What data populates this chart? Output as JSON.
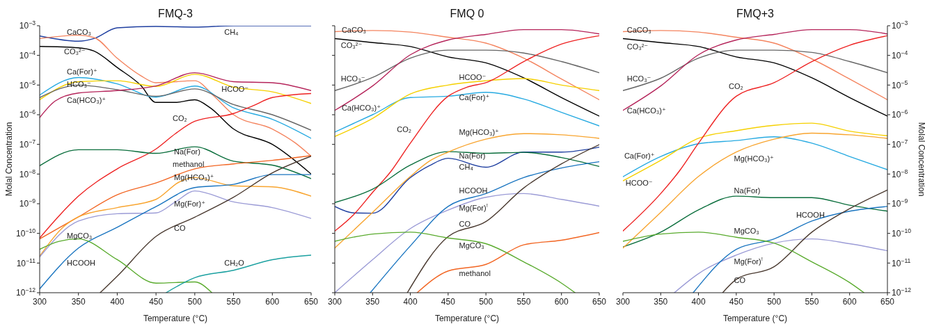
{
  "chart_data": [
    {
      "type": "line",
      "title": "FMQ-3",
      "xlabel": "Temperature (°C)",
      "ylabel": "Molal Concentration",
      "xlim": [
        300,
        650
      ],
      "xticks": [
        300,
        350,
        400,
        450,
        500,
        550,
        600,
        650
      ],
      "ylim": [
        1e-12,
        0.001
      ],
      "log": true,
      "yticks": [
        {
          "value": 1e-12,
          "label": "10$^{−12}$"
        },
        {
          "value": 1e-11,
          "label": "10$^{−11}$"
        },
        {
          "value": 1e-10,
          "label": "10$^{−10}$"
        },
        {
          "value": 1e-09,
          "label": "10$^{−9}$"
        },
        {
          "value": 1e-08,
          "label": "10$^{−8}$"
        },
        {
          "value": 1e-07,
          "label": "10$^{−7}$"
        },
        {
          "value": 1e-06,
          "label": "10$^{−6}$"
        },
        {
          "value": 1e-05,
          "label": "10$^{−5}$"
        },
        {
          "value": 0.0001,
          "label": "10$^{−4}$"
        },
        {
          "value": 0.001,
          "label": "10$^{−3}$"
        }
      ],
      "series": [
        {
          "name": "CH₄",
          "color": "#1f3fa0",
          "x": [
            300,
            350,
            370,
            400,
            450,
            500,
            550,
            600,
            650
          ],
          "values": [
            0.00045,
            0.0003,
            0.00037,
            0.00085,
            0.00095,
            0.0009,
            0.001,
            0.001,
            0.001
          ]
        },
        {
          "name": "CaCO₃",
          "color": "#f4845f",
          "x": [
            300,
            350,
            370,
            400,
            430,
            450,
            500,
            525,
            550,
            600,
            630,
            650
          ],
          "values": [
            0.00037,
            0.00048,
            0.0004,
            8e-05,
            2.1e-05,
            1.2e-05,
            1.4e-05,
            4.2e-06,
            1e-06,
            3.3e-07,
            1.1e-07,
            4e-08
          ]
        },
        {
          "name": "CO₃²⁻",
          "color": "#000000",
          "x": [
            300,
            350,
            370,
            400,
            430,
            450,
            475,
            500,
            520,
            550,
            600,
            650
          ],
          "values": [
            0.0002,
            0.00018,
            0.00014,
            3.9e-05,
            1e-05,
            2.6e-06,
            2.6e-06,
            3.2e-06,
            1.7e-06,
            3.3e-07,
            1e-07,
            1e-08
          ]
        },
        {
          "name": "Ca(For)⁺",
          "color": "#27aae1",
          "x": [
            300,
            350,
            400,
            450,
            500,
            550,
            600,
            650
          ],
          "values": [
            4.6e-06,
            1.8e-05,
            1.1e-05,
            3.9e-06,
            9.3e-06,
            1.7e-06,
            7e-07,
            1.6e-07
          ]
        },
        {
          "name": "HCOO⁻",
          "color": "#f5d000",
          "x": [
            300,
            350,
            400,
            450,
            500,
            550,
            600,
            650
          ],
          "values": [
            3.2e-06,
            1.3e-05,
            1.4e-05,
            9e-06,
            2.3e-05,
            8.5e-06,
            5.9e-06,
            2.4e-06
          ]
        },
        {
          "name": "HCO₃⁻",
          "color": "#666666",
          "x": [
            300,
            350,
            400,
            450,
            500,
            550,
            600,
            650
          ],
          "values": [
            3.8e-06,
            1e-05,
            7e-06,
            4.2e-06,
            7.4e-06,
            2.2e-06,
            1e-06,
            3e-07
          ]
        },
        {
          "name": "Ca(HCO₃)⁺",
          "color": "#b5245a",
          "x": [
            300,
            320,
            350,
            400,
            450,
            500,
            550,
            600,
            650
          ],
          "values": [
            8e-07,
            2.9e-06,
            5.4e-06,
            6.5e-06,
            9.3e-06,
            2.6e-05,
            1.3e-05,
            1.2e-05,
            6.5e-06
          ]
        },
        {
          "name": "CO₂",
          "color": "#ee2222",
          "x": [
            300,
            325,
            350,
            400,
            450,
            475,
            500,
            550,
            575,
            600,
            650
          ],
          "values": [
            7e-11,
            3.9e-10,
            1.8e-09,
            1.5e-08,
            7e-08,
            2.3e-07,
            6e-07,
            1.1e-06,
            2e-06,
            3.8e-06,
            5.2e-06
          ]
        },
        {
          "name": "Na(For)",
          "color": "#0a6e3c",
          "x": [
            300,
            350,
            400,
            450,
            500,
            550,
            600,
            650
          ],
          "values": [
            1.9e-08,
            6.6e-08,
            6.6e-08,
            5e-08,
            8.3e-08,
            2.7e-08,
            2e-08,
            7e-09
          ]
        },
        {
          "name": "methanol",
          "color": "#f26522",
          "x": [
            300,
            350,
            400,
            450,
            500,
            550,
            600,
            650
          ],
          "values": [
            6.5e-11,
            3.6e-10,
            2e-09,
            5e-09,
            1.5e-08,
            2.2e-08,
            2.9e-08,
            4.2e-08
          ]
        },
        {
          "name": "Mg(HCO₃)⁺",
          "color": "#f8a530",
          "x": [
            300,
            330,
            350,
            400,
            450,
            480,
            500,
            550,
            600,
            650
          ],
          "values": [
            1.7e-11,
            1.6e-10,
            3.6e-10,
            7.4e-10,
            1.4e-09,
            5.4e-09,
            7.6e-09,
            4e-09,
            3.7e-09,
            1.8e-09
          ]
        },
        {
          "name": "Mg(For)⁺",
          "color": "#9b9bd6",
          "x": [
            300,
            350,
            400,
            450,
            475,
            500,
            550,
            600,
            650
          ],
          "values": [
            1.6e-11,
            2.6e-10,
            4.6e-10,
            4.9e-10,
            1.15e-09,
            2.7e-09,
            1.15e-09,
            7.4e-10,
            3.2e-10
          ]
        },
        {
          "name": "HCOOH",
          "color": "#1a75c0",
          "x": [
            300,
            350,
            400,
            450,
            500,
            550,
            600,
            650
          ],
          "values": [
            1.35e-12,
            3.2e-11,
            1.6e-10,
            8e-10,
            3.5e-09,
            4.5e-09,
            9.6e-09,
            9.6e-09
          ]
        },
        {
          "name": "CO",
          "color": "#4a3a30",
          "x": [
            378,
            400,
            450,
            500,
            550,
            600,
            650
          ],
          "values": [
            1e-12,
            3.6e-12,
            7.9e-11,
            3.5e-10,
            1.65e-09,
            1.1e-08,
            4e-08
          ]
        },
        {
          "name": "MgCO₃",
          "color": "#5aab2e",
          "x": [
            300,
            325,
            350,
            400,
            450,
            500,
            522
          ],
          "values": [
            2.9e-11,
            5.4e-11,
            6.5e-11,
            1.3e-11,
            2.1e-12,
            2.3e-12,
            1e-12
          ]
        },
        {
          "name": "CH₂O",
          "color": "#1aa0a0",
          "x": [
            463,
            500,
            550,
            600,
            650
          ],
          "values": [
            1e-12,
            3.2e-12,
            5.7e-12,
            1.3e-11,
            1.85e-11
          ]
        }
      ]
    },
    {
      "type": "line",
      "title": "FMQ 0",
      "xlabel": "Temperature (°C)",
      "xlim": [
        300,
        650
      ],
      "xticks": [
        300,
        350,
        400,
        450,
        500,
        550,
        600,
        650
      ],
      "ylim": [
        1e-12,
        0.001
      ],
      "log": true,
      "tick_labels": "x",
      "yticks": [
        {
          "value": 1e-12,
          "label": null
        },
        {
          "value": 1e-11,
          "label": null
        },
        {
          "value": 1e-10,
          "label": null
        },
        {
          "value": 1e-09,
          "label": null
        },
        {
          "value": 1e-08,
          "label": null
        },
        {
          "value": 1e-07,
          "label": null
        },
        {
          "value": 1e-06,
          "label": null
        },
        {
          "value": 1e-05,
          "label": null
        },
        {
          "value": 0.0001,
          "label": null
        },
        {
          "value": 0.001,
          "label": null
        }
      ],
      "series": [
        {
          "name": "CH₄",
          "color": "#1f3fa0",
          "x": [
            300,
            325,
            350,
            400,
            425,
            450,
            500,
            550,
            600,
            650
          ],
          "values": [
            8.1e-10,
            4.9e-10,
            4.8e-10,
            7.6e-09,
            1.9e-08,
            3.4e-08,
            1.7e-08,
            5.5e-08,
            5.5e-08,
            8.1e-08
          ]
        },
        {
          "name": "CaCO₃",
          "color": "#f4845f",
          "x": [
            300,
            350,
            400,
            450,
            500,
            550,
            600,
            650
          ],
          "values": [
            0.00063,
            0.00069,
            0.00061,
            0.00041,
            0.00026,
            8.1e-05,
            1.6e-05,
            3.2e-06
          ]
        },
        {
          "name": "CO₃²⁻",
          "color": "#000000",
          "x": [
            300,
            350,
            400,
            450,
            500,
            550,
            600,
            650
          ],
          "values": [
            0.00037,
            0.00027,
            0.0002,
            8.9e-05,
            5.6e-05,
            1.75e-05,
            3.8e-06,
            9e-07
          ]
        },
        {
          "name": "Ca(For)⁺",
          "color": "#27aae1",
          "x": [
            300,
            350,
            400,
            450,
            500,
            550,
            600,
            650
          ],
          "values": [
            2.6e-07,
            1e-06,
            3.8e-06,
            4.2e-06,
            5.7e-06,
            3.4e-06,
            1.2e-06,
            4.2e-07
          ]
        },
        {
          "name": "HCOO⁻",
          "color": "#f5d000",
          "x": [
            300,
            350,
            400,
            450,
            500,
            550,
            600,
            650
          ],
          "values": [
            1.85e-07,
            7.5e-07,
            5e-06,
            1e-05,
            1.4e-05,
            1.65e-05,
            1e-05,
            6.5e-06
          ]
        },
        {
          "name": "HCO₃⁻",
          "color": "#666666",
          "x": [
            300,
            350,
            400,
            450,
            500,
            550,
            600,
            650
          ],
          "values": [
            6.5e-06,
            1.8e-05,
            8.1e-05,
            0.00015,
            0.00015,
            0.00012,
            6.2e-05,
            2.6e-05
          ]
        },
        {
          "name": "Ca(HCO₃)⁺",
          "color": "#b5245a",
          "x": [
            300,
            350,
            400,
            450,
            500,
            550,
            600,
            650
          ],
          "values": [
            1.4e-06,
            9.3e-06,
            0.000105,
            0.00033,
            0.00051,
            0.00074,
            0.00074,
            0.00053
          ]
        },
        {
          "name": "CO₂",
          "color": "#ee2222",
          "x": [
            300,
            325,
            350,
            375,
            400,
            450,
            475,
            500,
            550,
            600,
            650
          ],
          "values": [
            1.2e-10,
            4.3e-10,
            2.4e-09,
            1.3e-08,
            1.1e-07,
            4.2e-06,
            8.5e-06,
            1.2e-05,
            6.2e-05,
            0.00024,
            0.00046
          ]
        },
        {
          "name": "Na(For)",
          "color": "#0a6e3c",
          "x": [
            300,
            350,
            400,
            450,
            500,
            550,
            600,
            650
          ],
          "values": [
            1.1e-09,
            3.1e-09,
            2e-08,
            5.7e-08,
            5e-08,
            5.4e-08,
            3.6e-08,
            1.8e-08
          ]
        },
        {
          "name": "methanol",
          "color": "#f26522",
          "x": [
            409,
            450,
            500,
            550,
            600,
            650
          ],
          "values": [
            1e-12,
            5.4e-12,
            9e-12,
            4.1e-11,
            5.9e-11,
            1.07e-10
          ]
        },
        {
          "name": "Mg(HCO₃)⁺",
          "color": "#f8a530",
          "x": [
            300,
            350,
            400,
            425,
            450,
            500,
            550,
            600,
            650
          ],
          "values": [
            3.2e-11,
            5.1e-10,
            8.3e-09,
            2.7e-08,
            5.5e-08,
            1.5e-07,
            2.3e-07,
            2.1e-07,
            1.6e-07
          ]
        },
        {
          "name": "Mg(For)$^{!}$",
          "color": "#9b9bd6",
          "x": [
            300,
            350,
            400,
            450,
            500,
            550,
            600,
            650
          ],
          "values": [
            1e-12,
            1.3e-11,
            1.45e-10,
            6.1e-10,
            1.65e-09,
            2.2e-09,
            1.4e-09,
            8.3e-10
          ]
        },
        {
          "name": "HCOOH",
          "color": "#1a75c0",
          "x": [
            347,
            400,
            450,
            500,
            550,
            600,
            650
          ],
          "values": [
            1e-12,
            3.8e-11,
            8.1e-10,
            2.2e-09,
            7.6e-09,
            1.6e-08,
            2.6e-08
          ]
        },
        {
          "name": "CO",
          "color": "#4a3a30",
          "x": [
            396,
            450,
            500,
            550,
            600,
            650
          ],
          "values": [
            1e-12,
            7.8e-11,
            2.5e-10,
            3.4e-09,
            2.2e-08,
            9.8e-08
          ]
        },
        {
          "name": "MgCO₃",
          "color": "#5aab2e",
          "x": [
            300,
            350,
            400,
            450,
            500,
            550,
            600,
            618
          ],
          "values": [
            5.4e-11,
            9.5e-11,
            1.1e-10,
            7e-11,
            4.5e-11,
            1.1e-11,
            2.1e-12,
            1e-12
          ]
        }
      ]
    },
    {
      "type": "line",
      "title": "FMQ+3",
      "xlabel": "Temperature (°C)",
      "y2label": "Molal Concentration",
      "xlim": [
        300,
        650
      ],
      "xticks": [
        300,
        350,
        400,
        450,
        500,
        550,
        600,
        650
      ],
      "y2lim": [
        1e-12,
        0.001
      ],
      "log": "y2",
      "y2ticks": [
        {
          "value": 1e-12,
          "label": "10$^{−12}$"
        },
        {
          "value": 1e-11,
          "label": "10$^{−11}$"
        },
        {
          "value": 1e-10,
          "label": "10$^{−10}$"
        },
        {
          "value": 1e-09,
          "label": "10$^{−9}$"
        },
        {
          "value": 1e-08,
          "label": "10$^{−8}$"
        },
        {
          "value": 1e-07,
          "label": "10$^{−7}$"
        },
        {
          "value": 1e-06,
          "label": "10$^{−6}$"
        },
        {
          "value": 1e-05,
          "label": "10$^{−5}$"
        },
        {
          "value": 0.0001,
          "label": "10$^{−4}$"
        },
        {
          "value": 0.001,
          "label": "10$^{−3}$"
        }
      ],
      "series": [
        {
          "name": "CaCO₃",
          "color": "#f4845f",
          "axis": "y2",
          "x": [
            300,
            350,
            400,
            450,
            500,
            550,
            600,
            650
          ],
          "values": [
            0.00063,
            0.00069,
            0.00061,
            0.00041,
            0.00026,
            7.6e-05,
            1.6e-05,
            3.2e-06
          ]
        },
        {
          "name": "CO₃²⁻",
          "color": "#000000",
          "axis": "y2",
          "x": [
            300,
            350,
            400,
            450,
            500,
            550,
            600,
            650
          ],
          "values": [
            0.00037,
            0.00027,
            0.0002,
            8.9e-05,
            5.6e-05,
            1.75e-05,
            3.8e-06,
            9e-07
          ]
        },
        {
          "name": "Ca(For)⁺",
          "color": "#27aae1",
          "axis": "y2",
          "x": [
            300,
            350,
            400,
            450,
            500,
            550,
            600,
            650
          ],
          "values": [
            8.1e-09,
            3.9e-08,
            1.05e-07,
            1.35e-07,
            1.8e-07,
            1.1e-07,
            3.9e-08,
            1.4e-08
          ]
        },
        {
          "name": "HCOO⁻",
          "color": "#f5d000",
          "axis": "y2",
          "x": [
            300,
            350,
            400,
            450,
            500,
            550,
            600,
            650
          ],
          "values": [
            5.9e-09,
            2.9e-08,
            1.6e-07,
            2.9e-07,
            4.4e-07,
            5.2e-07,
            2.8e-07,
            1.95e-07
          ]
        },
        {
          "name": "HCO₃⁻",
          "color": "#666666",
          "axis": "y2",
          "x": [
            300,
            350,
            400,
            450,
            500,
            550,
            600,
            650
          ],
          "values": [
            6.5e-06,
            1.7e-05,
            8.1e-05,
            0.00015,
            0.00015,
            0.000126,
            6.2e-05,
            2.6e-05
          ]
        },
        {
          "name": "Ca(HCO₃)⁺",
          "color": "#b5245a",
          "axis": "y2",
          "x": [
            300,
            350,
            400,
            450,
            500,
            550,
            600,
            650
          ],
          "values": [
            1.4e-06,
            9.3e-06,
            0.000105,
            0.00033,
            0.00051,
            0.00074,
            0.00074,
            0.00053
          ]
        },
        {
          "name": "CO₂",
          "color": "#ee2222",
          "axis": "y2",
          "x": [
            300,
            350,
            375,
            400,
            450,
            500,
            550,
            600,
            650
          ],
          "values": [
            1.2e-10,
            2.2e-09,
            1.3e-08,
            1.1e-07,
            4.2e-06,
            1.2e-05,
            6.2e-05,
            0.00022,
            0.00046
          ]
        },
        {
          "name": "Na(For)",
          "color": "#0a6e3c",
          "axis": "y2",
          "x": [
            300,
            350,
            400,
            450,
            500,
            550,
            600,
            650
          ],
          "values": [
            3.5e-11,
            1.1e-10,
            6.2e-10,
            1.8e-09,
            1.6e-09,
            1.6e-09,
            8.9e-10,
            5.6e-10
          ]
        },
        {
          "name": "Mg(HCO₃)⁺",
          "color": "#f8a530",
          "axis": "y2",
          "x": [
            300,
            350,
            400,
            450,
            500,
            550,
            600,
            650
          ],
          "values": [
            3.2e-11,
            5.1e-10,
            8.3e-09,
            5.5e-08,
            1.5e-07,
            2.4e-07,
            2.1e-07,
            1.6e-07
          ]
        },
        {
          "name": "Mg(For)$^{!}$",
          "color": "#9b9bd6",
          "axis": "y2",
          "x": [
            368,
            400,
            450,
            500,
            550,
            600,
            650
          ],
          "values": [
            1e-12,
            4.4e-12,
            1.85e-11,
            4.7e-11,
            6.5e-11,
            4.5e-11,
            2.6e-11
          ]
        },
        {
          "name": "HCOOH",
          "color": "#1a75c0",
          "axis": "y2",
          "x": [
            393,
            450,
            500,
            550,
            600,
            650
          ],
          "values": [
            1e-12,
            2.9e-11,
            6.5e-11,
            2.6e-10,
            5.6e-10,
            8.1e-10
          ]
        },
        {
          "name": "CO",
          "color": "#4a3a30",
          "axis": "y2",
          "x": [
            432,
            450,
            500,
            550,
            600,
            650
          ],
          "values": [
            1e-12,
            2.8e-12,
            7.5e-12,
            1.1e-10,
            6.8e-10,
            2.9e-09
          ]
        },
        {
          "name": "MgCO₃",
          "color": "#5aab2e",
          "axis": "y2",
          "x": [
            300,
            350,
            400,
            450,
            500,
            550,
            600,
            619
          ],
          "values": [
            5.4e-11,
            9.5e-11,
            1.1e-10,
            7.4e-11,
            4.7e-11,
            1.1e-11,
            2.2e-12,
            1e-12
          ]
        }
      ]
    }
  ]
}
